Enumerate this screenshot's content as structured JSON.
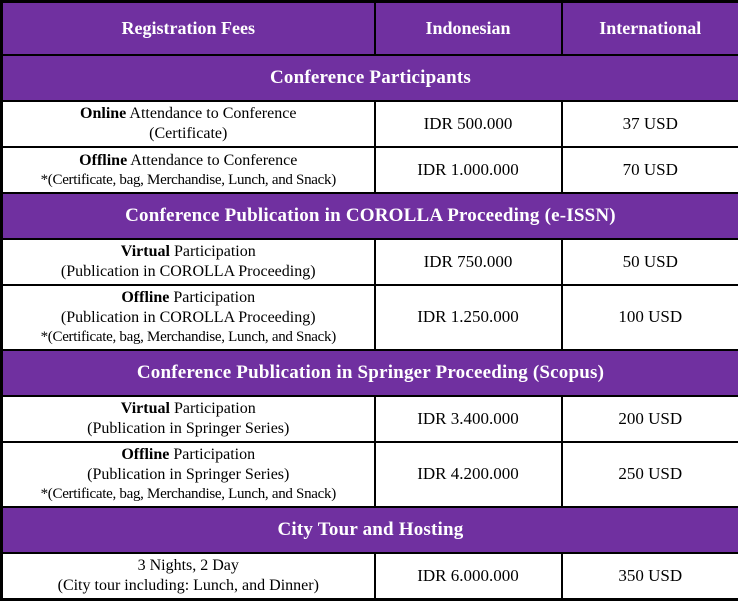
{
  "colors": {
    "band_purple": "#7030A0",
    "grid_border": "#000000",
    "header_text": "#FFFFFF",
    "body_text": "#000000",
    "row_background": "#FFFFFF"
  },
  "header": {
    "fees": "Registration Fees",
    "indonesian": "Indonesian",
    "international": "International"
  },
  "sections": [
    {
      "title": "Conference Participants",
      "rows": [
        {
          "bold": "Online",
          "line1": " Attendance to Conference",
          "line2": "(Certificate)",
          "idr": "IDR 500.000",
          "usd": "37 USD"
        },
        {
          "bold": "Offline",
          "line1": " Attendance to Conference",
          "line2": "*(Certificate, bag, Merchandise, Lunch, and Snack)",
          "idr": "IDR 1.000.000",
          "usd": "70 USD"
        }
      ]
    },
    {
      "title": "Conference Publication in COROLLA Proceeding (e-ISSN)",
      "rows": [
        {
          "bold": "Virtual",
          "line1": " Participation",
          "line2": "(Publication in COROLLA Proceeding)",
          "idr": "IDR 750.000",
          "usd": "50 USD"
        },
        {
          "bold": "Offline",
          "line1": " Participation",
          "line2": "(Publication in COROLLA Proceeding)",
          "line3": "*(Certificate, bag, Merchandise, Lunch, and Snack)",
          "idr": "IDR 1.250.000",
          "usd": "100 USD"
        }
      ]
    },
    {
      "title": "Conference Publication in Springer Proceeding (Scopus)",
      "rows": [
        {
          "bold": "Virtual",
          "line1": " Participation",
          "line2": "(Publication in Springer Series)",
          "idr": "IDR 3.400.000",
          "usd": "200 USD"
        },
        {
          "bold": "Offline",
          "line1": " Participation",
          "line2": "(Publication in Springer Series)",
          "line3": "*(Certificate, bag, Merchandise, Lunch, and Snack)",
          "idr": "IDR 4.200.000",
          "usd": "250 USD"
        }
      ]
    },
    {
      "title": "City Tour and Hosting",
      "rows": [
        {
          "bold": "",
          "line1": "3 Nights, 2 Day",
          "line2": "(City tour including: Lunch, and Dinner)",
          "idr": "IDR 6.000.000",
          "usd": "350 USD"
        }
      ]
    }
  ]
}
